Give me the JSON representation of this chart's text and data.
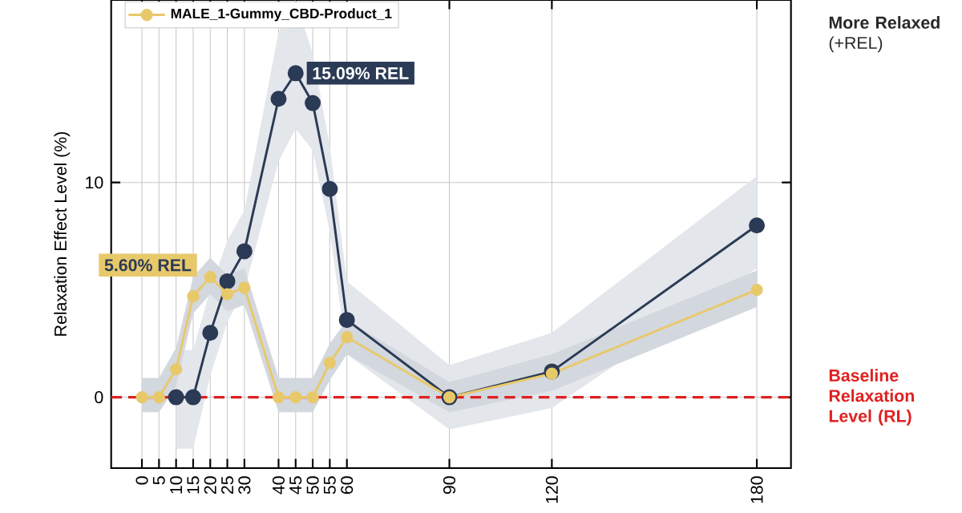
{
  "chart_data": {
    "type": "line",
    "ylabel": "Relaxation Effect Level (%)",
    "x": [
      0,
      5,
      10,
      15,
      20,
      25,
      30,
      40,
      45,
      50,
      55,
      60,
      90,
      120,
      180
    ],
    "series": [
      {
        "color": "#2b3a55",
        "values": [
          null,
          null,
          0,
          0,
          3.0,
          5.4,
          6.8,
          13.9,
          15.09,
          13.7,
          9.7,
          3.6,
          0,
          1.2,
          8.0
        ],
        "lower": [
          null,
          null,
          -2.4,
          -2.4,
          1.0,
          3.5,
          5.0,
          11.0,
          12.5,
          11.5,
          7.7,
          2.0,
          -1.5,
          -0.5,
          6.0
        ],
        "upper": [
          null,
          null,
          2.2,
          2.2,
          5.0,
          7.3,
          8.7,
          17.0,
          18.5,
          16.0,
          11.7,
          5.4,
          1.5,
          3.0,
          10.3
        ]
      },
      {
        "name": "MALE_1-Gummy_CBD-Product_1",
        "color": "#e8c96a",
        "values": [
          0,
          0,
          1.3,
          4.7,
          5.6,
          4.8,
          5.1,
          0,
          0,
          0,
          1.6,
          2.8,
          0,
          1.1,
          5.0
        ],
        "lower": [
          -0.7,
          -0.7,
          0.5,
          3.9,
          4.8,
          4.0,
          4.3,
          -0.7,
          -0.7,
          -0.7,
          0.8,
          2.0,
          -0.7,
          0.3,
          4.2
        ],
        "upper": [
          0.9,
          0.9,
          2.3,
          5.6,
          6.5,
          5.7,
          6.0,
          0.9,
          0.9,
          0.9,
          2.5,
          3.6,
          0.7,
          2.0,
          5.9
        ]
      }
    ],
    "xlim": [
      -9,
      190
    ],
    "ylim": [
      -3.3,
      18.5
    ],
    "xticks": [
      0,
      5,
      10,
      15,
      20,
      25,
      30,
      40,
      45,
      50,
      55,
      60,
      90,
      120,
      180
    ],
    "yticks": [
      0,
      10
    ],
    "grid": true,
    "legend": "top left",
    "marker": "circle",
    "line_style": "solid",
    "ref_lines": [
      {
        "axis": "y",
        "value": 0,
        "label": "Baseline Relaxation Level (RL)",
        "color": "#e02020",
        "line_style": "dashed"
      }
    ],
    "annotations": [
      {
        "text": "15.09% REL",
        "x": 45,
        "y": 15.09
      },
      {
        "text": "5.60% REL",
        "x": 20,
        "y": 5.6
      },
      "**More Relaxed** (+REL)"
    ]
  }
}
